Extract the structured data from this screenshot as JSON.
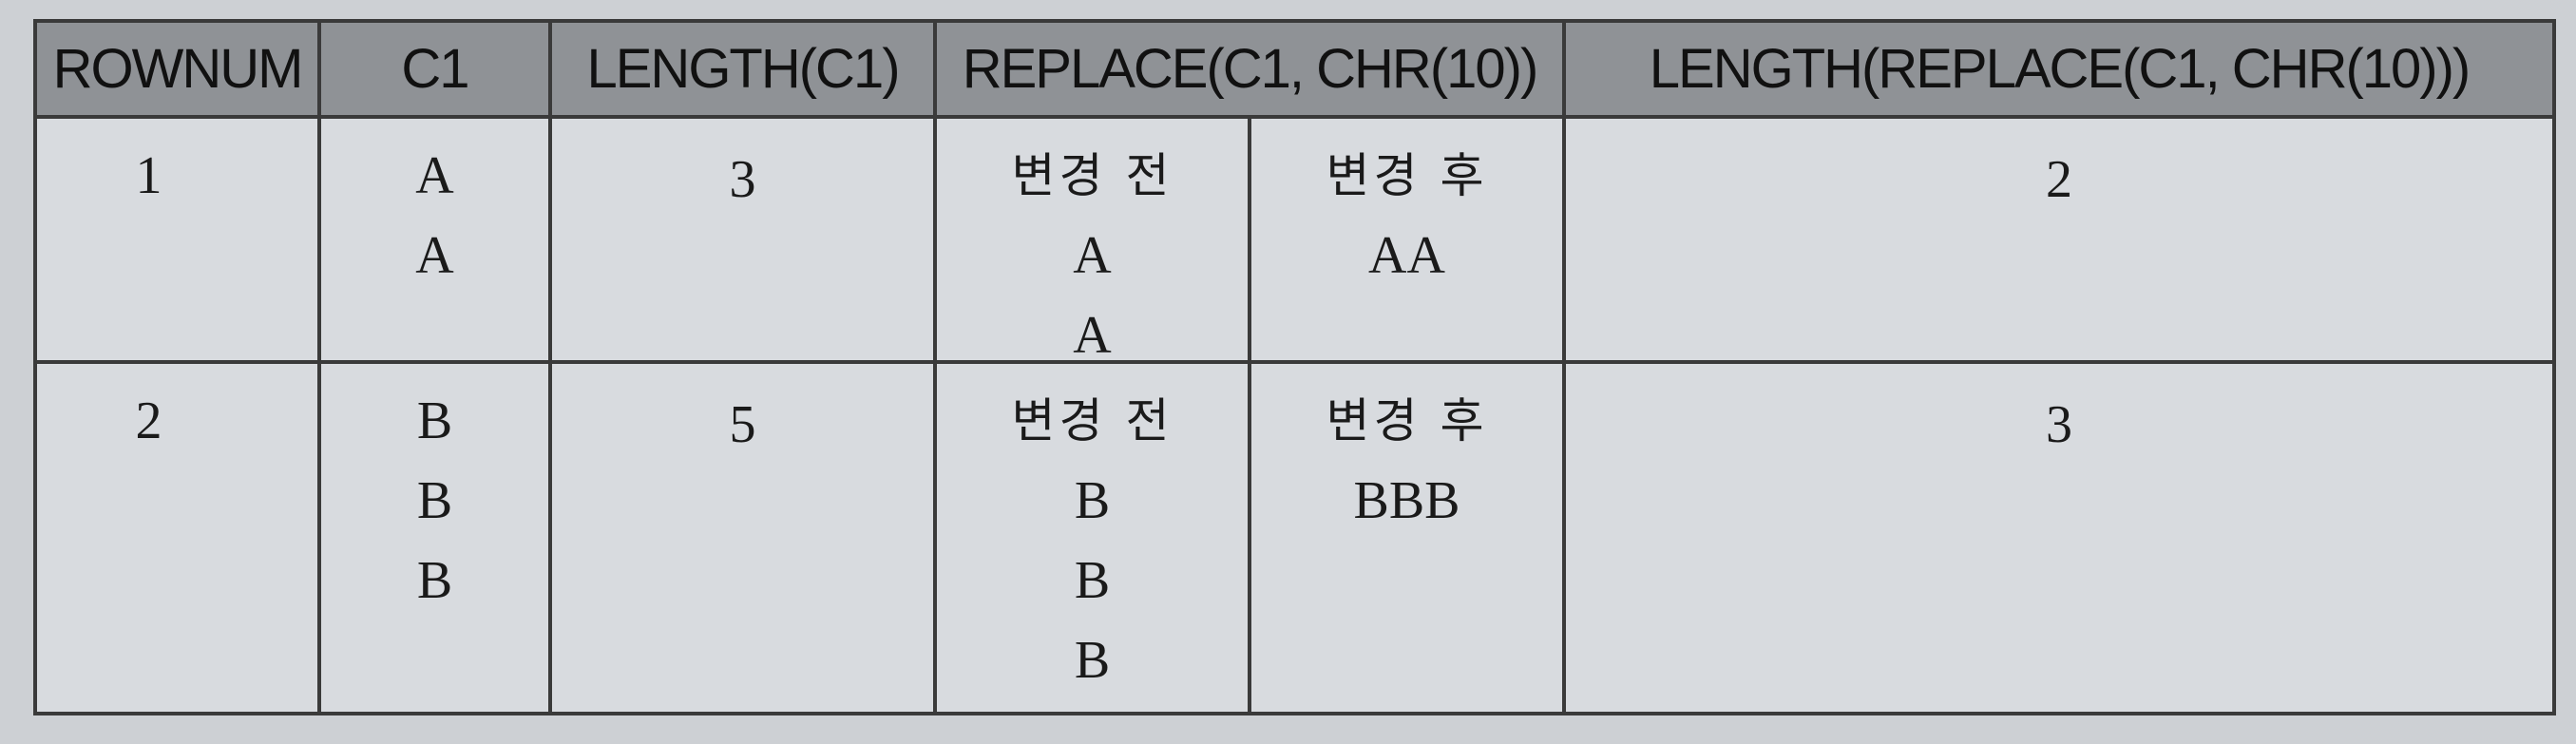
{
  "headers": [
    "ROWNUM",
    "C1",
    "LENGTH(C1)",
    "REPLACE(C1, CHR(10))",
    "LENGTH(REPLACE(C1, CHR(10)))"
  ],
  "rows": [
    {
      "rownum": "1",
      "c1": [
        "A",
        "A"
      ],
      "length": "3",
      "before_label": "변경 전",
      "before_values": [
        "A",
        "A"
      ],
      "after_label": "변경 후",
      "after_values": [
        "AA"
      ],
      "replace_length": "2"
    },
    {
      "rownum": "2",
      "c1": [
        "B",
        "B",
        "B"
      ],
      "length": "5",
      "before_label": "변경 전",
      "before_values": [
        "B",
        "B",
        "B"
      ],
      "after_label": "변경 후",
      "after_values": [
        "BBB"
      ],
      "replace_length": "3"
    }
  ]
}
